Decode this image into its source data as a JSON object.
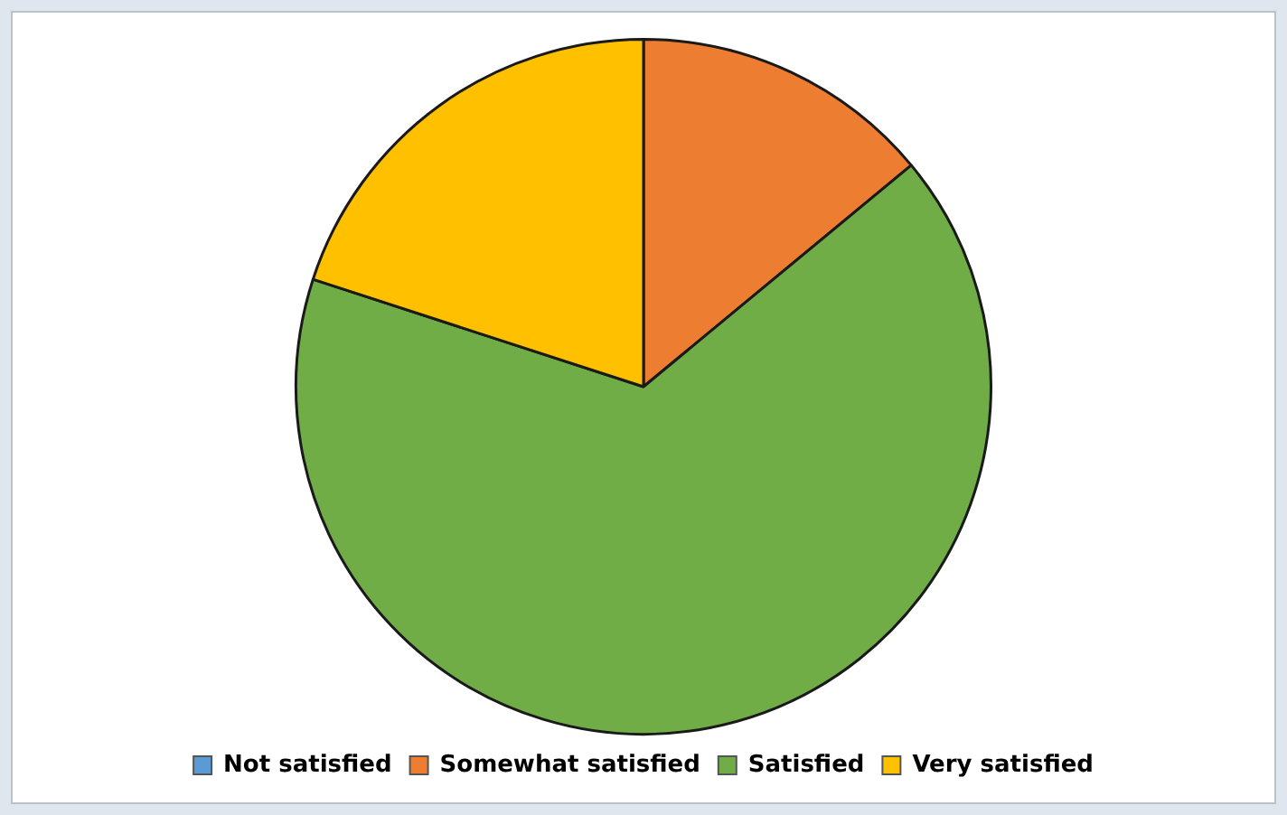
{
  "chart_data": {
    "type": "pie",
    "categories": [
      "Not satisfied",
      "Somewhat satisfied",
      "Satisfied",
      "Very satisfied"
    ],
    "values": [
      0,
      14,
      66,
      20
    ],
    "colors": [
      "#5b9bd5",
      "#ed7d31",
      "#70ad47",
      "#ffc000"
    ],
    "legend": "bottom"
  }
}
